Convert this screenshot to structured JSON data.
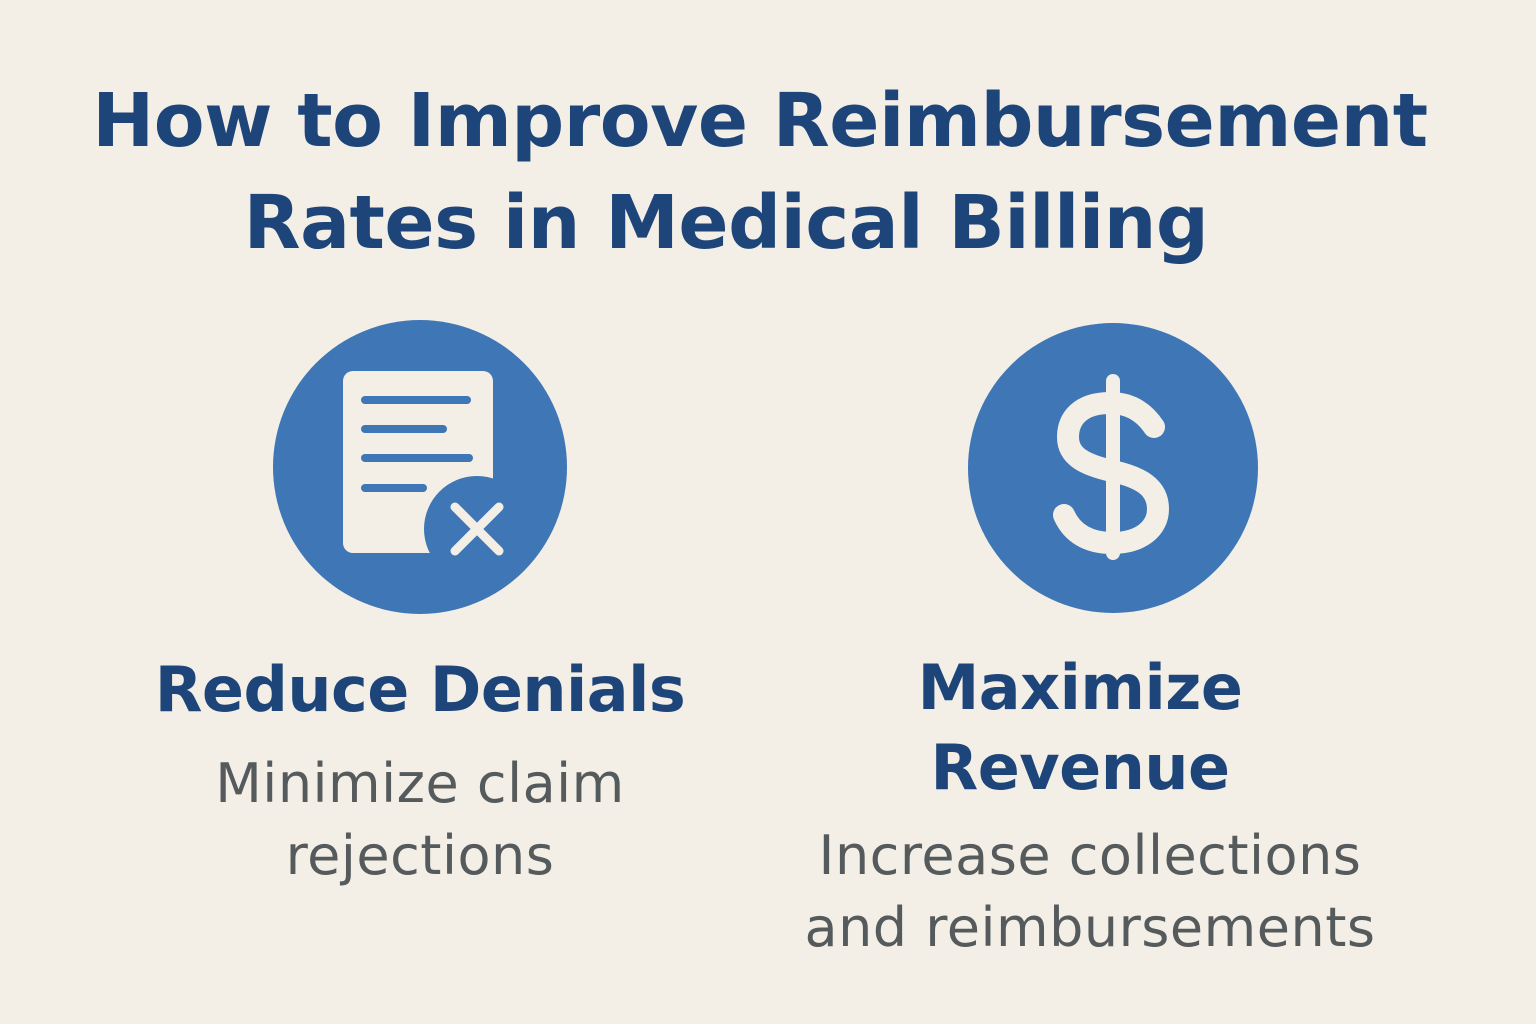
{
  "title": {
    "line1": "How to Improve Reimbursement",
    "line2": "Rates in Medical Billing"
  },
  "colors": {
    "background": "#f4efe6",
    "heading": "#1d4579",
    "icon_circle": "#3f76b6",
    "body_text": "#555a5c"
  },
  "items": [
    {
      "icon": "document-x-icon",
      "heading": "Reduce Denials",
      "description": "Minimize claim rejections"
    },
    {
      "icon": "dollar-icon",
      "heading": "Maximize Revenue",
      "description": "Increase collections and reimbursements"
    }
  ]
}
